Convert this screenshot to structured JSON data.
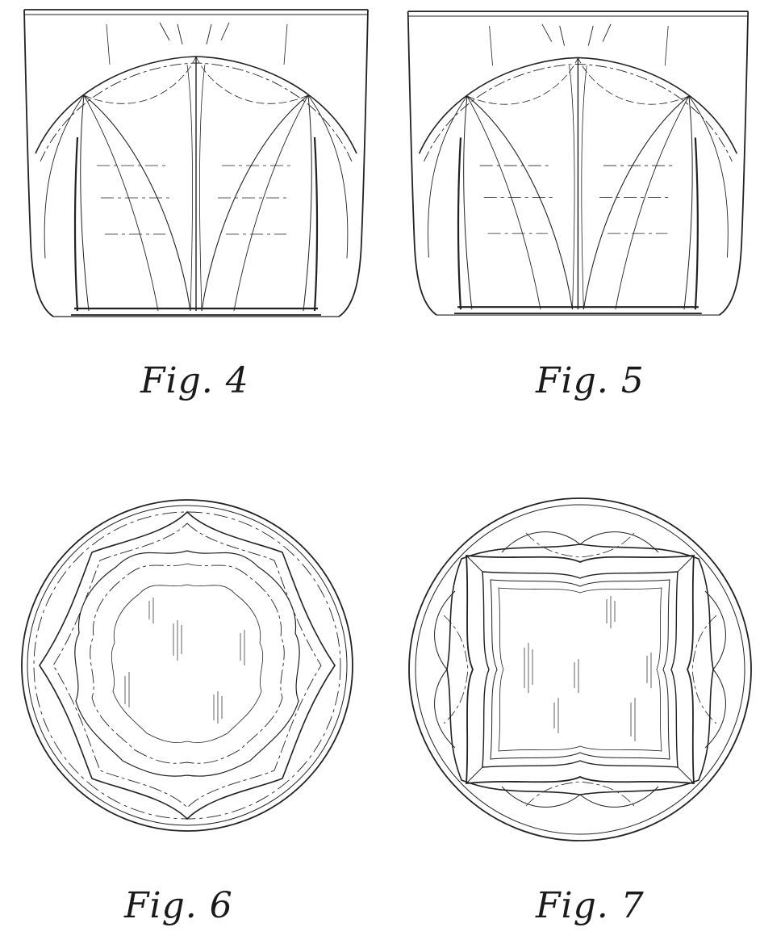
{
  "figures": [
    {
      "id": "fig4",
      "caption": "Fig. 4",
      "view": "side-elevation"
    },
    {
      "id": "fig5",
      "caption": "Fig. 5",
      "view": "side-elevation"
    },
    {
      "id": "fig6",
      "caption": "Fig. 6",
      "view": "top-plan"
    },
    {
      "id": "fig7",
      "caption": "Fig. 7",
      "view": "bottom-plan"
    }
  ],
  "colors": {
    "ink": "#222222",
    "paper": "#ffffff"
  }
}
